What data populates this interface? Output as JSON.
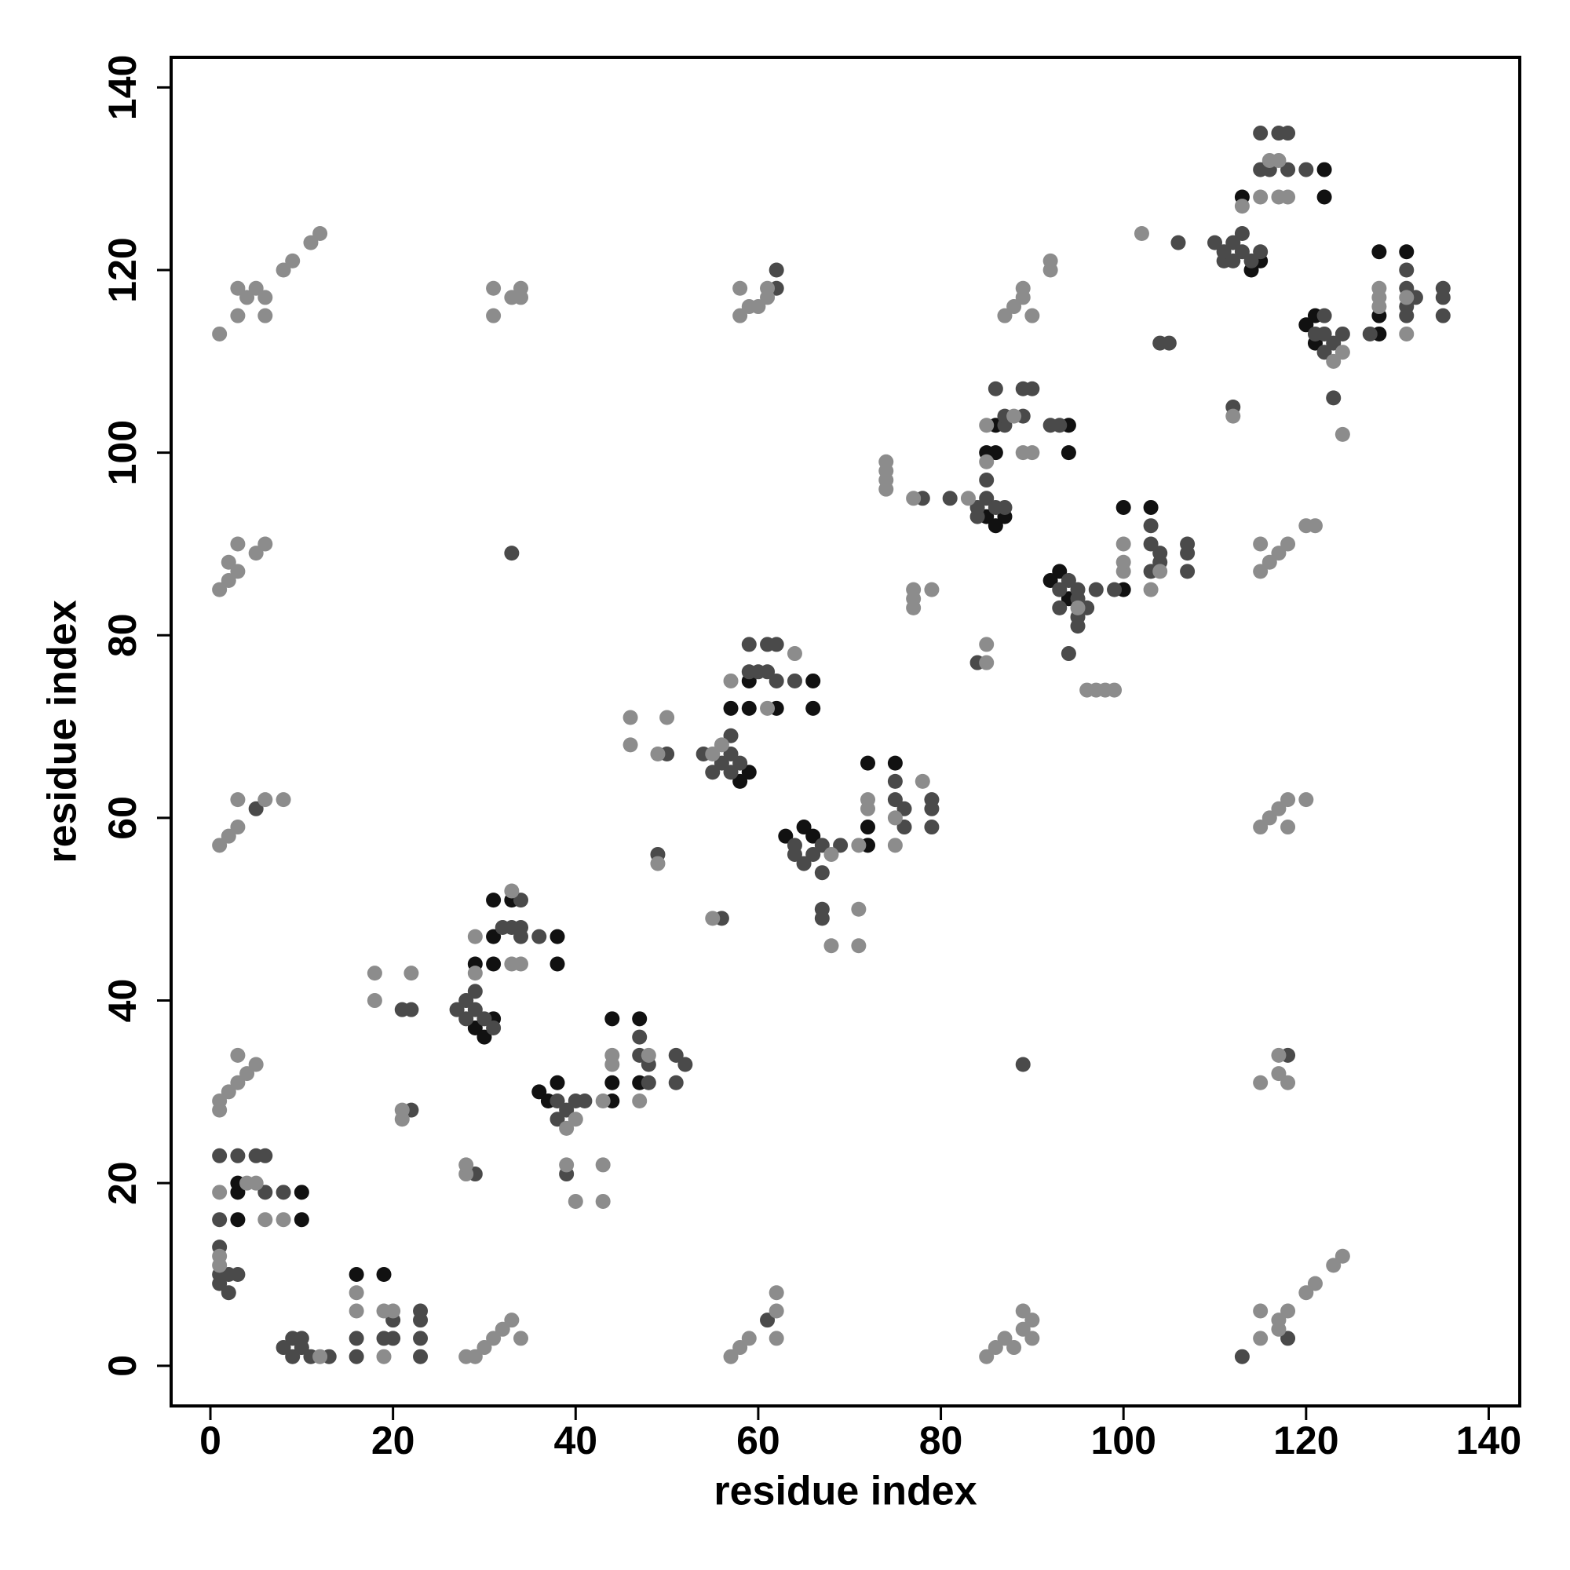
{
  "chart_data": {
    "type": "scatter",
    "x_label": "residue index",
    "y_label": "residue index",
    "xlim": [
      -4.3,
      143.4
    ],
    "ylim": [
      -4.4,
      143.3
    ],
    "xticks": [
      0,
      20,
      40,
      60,
      80,
      100,
      120,
      140
    ],
    "yticks": [
      0,
      20,
      40,
      60,
      80,
      100,
      120,
      140
    ],
    "series": [
      {
        "color": "#111111",
        "x": [
          3,
          3,
          3,
          10,
          10,
          16,
          19,
          29,
          30,
          31,
          29,
          31,
          31,
          31,
          33,
          38,
          38,
          36,
          37,
          38,
          44,
          47,
          44,
          44,
          47,
          58,
          59,
          57,
          59,
          59,
          62,
          66,
          66,
          63,
          65,
          66,
          72,
          75,
          72,
          72,
          86,
          85,
          87,
          85,
          86,
          86,
          94,
          94,
          92,
          93,
          94,
          100,
          103,
          100,
          113,
          114,
          115,
          122,
          122,
          120,
          121,
          121,
          128,
          131,
          128,
          128
        ],
        "y": [
          16,
          19,
          20,
          16,
          19,
          10,
          10,
          37,
          36,
          38,
          44,
          44,
          47,
          51,
          51,
          47,
          44,
          30,
          29,
          31,
          38,
          38,
          31,
          29,
          31,
          64,
          65,
          72,
          72,
          75,
          72,
          75,
          72,
          58,
          59,
          58,
          66,
          66,
          59,
          57,
          92,
          93,
          93,
          100,
          103,
          100,
          103,
          100,
          86,
          87,
          84,
          94,
          94,
          85,
          128,
          120,
          121,
          131,
          128,
          114,
          115,
          112,
          122,
          122,
          113,
          115
        ]
      },
      {
        "color": "#4a4a4a",
        "x": [
          1,
          1,
          3,
          5,
          6,
          6,
          8,
          1,
          1,
          2,
          2,
          3,
          1,
          8,
          9,
          9,
          10,
          10,
          11,
          13,
          16,
          16,
          19,
          20,
          20,
          23,
          23,
          23,
          23,
          21,
          22,
          22,
          29,
          27,
          28,
          28,
          29,
          29,
          30,
          31,
          33,
          34,
          34,
          32,
          36,
          34,
          38,
          38,
          39,
          40,
          41,
          39,
          47,
          47,
          48,
          48,
          51,
          51,
          52,
          50,
          49,
          56,
          55,
          56,
          57,
          57,
          57,
          58,
          54,
          59,
          61,
          62,
          61,
          62,
          64,
          64,
          64,
          65,
          66,
          67,
          67,
          69,
          67,
          67,
          75,
          75,
          76,
          76,
          79,
          79,
          79,
          78,
          81,
          84,
          84,
          85,
          85,
          86,
          87,
          87,
          86,
          89,
          90,
          89,
          87,
          92,
          93,
          84,
          93,
          93,
          94,
          95,
          95,
          95,
          95,
          96,
          97,
          94,
          99,
          103,
          103,
          103,
          104,
          104,
          107,
          107,
          107,
          104,
          105,
          112,
          113,
          118,
          118,
          89,
          33,
          5,
          61,
          62,
          62,
          106,
          110,
          111,
          111,
          112,
          112,
          113,
          113,
          114,
          115,
          115,
          116,
          118,
          115,
          117,
          118,
          120,
          121,
          122,
          122,
          122,
          123,
          124,
          123,
          127,
          131,
          131,
          131,
          131,
          132,
          135,
          135,
          135,
          59,
          60
        ],
        "y": [
          16,
          23,
          23,
          23,
          23,
          19,
          19,
          9,
          10,
          8,
          10,
          10,
          13,
          2,
          1,
          3,
          2,
          3,
          1,
          1,
          1,
          3,
          3,
          3,
          5,
          1,
          3,
          5,
          6,
          39,
          39,
          28,
          21,
          39,
          38,
          40,
          39,
          41,
          38,
          37,
          48,
          51,
          48,
          48,
          47,
          47,
          29,
          27,
          28,
          29,
          29,
          21,
          34,
          36,
          31,
          33,
          31,
          34,
          33,
          67,
          56,
          49,
          65,
          66,
          65,
          67,
          69,
          66,
          67,
          79,
          79,
          79,
          76,
          75,
          75,
          56,
          57,
          55,
          56,
          54,
          57,
          57,
          49,
          50,
          64,
          62,
          59,
          61,
          61,
          62,
          59,
          95,
          95,
          93,
          94,
          95,
          97,
          94,
          94,
          103,
          107,
          107,
          107,
          104,
          104,
          103,
          103,
          77,
          83,
          85,
          86,
          84,
          85,
          82,
          81,
          83,
          85,
          78,
          85,
          92,
          90,
          87,
          89,
          88,
          87,
          89,
          90,
          112,
          112,
          105,
          1,
          3,
          34,
          33,
          89,
          61,
          5,
          118,
          120,
          123,
          123,
          121,
          122,
          121,
          123,
          122,
          124,
          121,
          122,
          131,
          131,
          131,
          135,
          135,
          135,
          131,
          113,
          111,
          113,
          115,
          112,
          113,
          106,
          113,
          120,
          118,
          116,
          115,
          117,
          118,
          117,
          115,
          76,
          76
        ]
      },
      {
        "color": "#8c8c8c",
        "x": [
          1,
          3,
          4,
          5,
          6,
          6,
          3,
          8,
          9,
          11,
          12,
          31,
          31,
          33,
          34,
          34,
          58,
          59,
          60,
          61,
          58,
          61,
          87,
          88,
          89,
          89,
          90,
          92,
          92,
          102,
          1,
          2,
          2,
          3,
          3,
          5,
          6,
          1,
          2,
          3,
          3,
          6,
          8,
          1,
          1,
          2,
          3,
          3,
          4,
          5,
          1,
          1,
          1,
          4,
          5,
          6,
          8,
          12,
          28,
          29,
          30,
          31,
          32,
          33,
          34,
          57,
          58,
          59,
          62,
          62,
          62,
          85,
          86,
          87,
          88,
          89,
          89,
          90,
          90,
          115,
          115,
          117,
          117,
          118,
          120,
          121,
          123,
          124,
          115,
          116,
          117,
          118,
          118,
          120,
          115,
          117,
          117,
          118,
          115,
          116,
          117,
          118,
          115,
          120,
          121,
          16,
          16,
          19,
          19,
          20,
          18,
          18,
          22,
          21,
          21,
          28,
          28,
          29,
          29,
          33,
          33,
          34,
          39,
          40,
          39,
          40,
          43,
          43,
          43,
          44,
          44,
          47,
          48,
          46,
          46,
          49,
          50,
          49,
          55,
          55,
          56,
          57,
          61,
          64,
          68,
          68,
          71,
          71,
          71,
          72,
          72,
          75,
          75,
          78,
          74,
          74,
          74,
          74,
          77,
          77,
          77,
          77,
          79,
          83,
          85,
          85,
          88,
          89,
          90,
          85,
          85,
          96,
          97,
          98,
          99,
          100,
          100,
          100,
          103,
          104,
          112,
          113,
          115,
          116,
          117,
          117,
          118,
          123,
          124,
          124,
          128,
          128,
          128,
          131,
          131,
          95
        ],
        "y": [
          113,
          115,
          117,
          118,
          117,
          115,
          118,
          120,
          121,
          123,
          124,
          118,
          115,
          117,
          117,
          118,
          115,
          116,
          116,
          117,
          118,
          118,
          115,
          116,
          117,
          118,
          115,
          120,
          121,
          124,
          85,
          86,
          88,
          87,
          90,
          89,
          90,
          57,
          58,
          59,
          62,
          62,
          62,
          28,
          29,
          30,
          31,
          34,
          32,
          33,
          11,
          12,
          19,
          20,
          20,
          16,
          16,
          1,
          1,
          1,
          2,
          3,
          4,
          5,
          3,
          1,
          2,
          3,
          6,
          8,
          3,
          1,
          2,
          3,
          2,
          4,
          6,
          5,
          3,
          3,
          6,
          4,
          5,
          6,
          8,
          9,
          11,
          12,
          59,
          60,
          61,
          62,
          59,
          62,
          31,
          32,
          34,
          31,
          87,
          88,
          89,
          90,
          90,
          92,
          92,
          6,
          8,
          1,
          6,
          6,
          40,
          43,
          43,
          27,
          28,
          21,
          22,
          43,
          47,
          52,
          44,
          44,
          26,
          27,
          22,
          18,
          18,
          22,
          29,
          33,
          34,
          29,
          34,
          68,
          71,
          67,
          71,
          55,
          49,
          67,
          68,
          75,
          72,
          78,
          56,
          46,
          46,
          50,
          57,
          61,
          62,
          60,
          57,
          64,
          96,
          97,
          98,
          99,
          95,
          83,
          84,
          85,
          85,
          95,
          99,
          103,
          104,
          100,
          100,
          77,
          79,
          74,
          74,
          74,
          74,
          87,
          88,
          90,
          85,
          87,
          104,
          127,
          128,
          132,
          132,
          128,
          128,
          110,
          111,
          102,
          116,
          117,
          118,
          113,
          117,
          83
        ]
      }
    ]
  }
}
